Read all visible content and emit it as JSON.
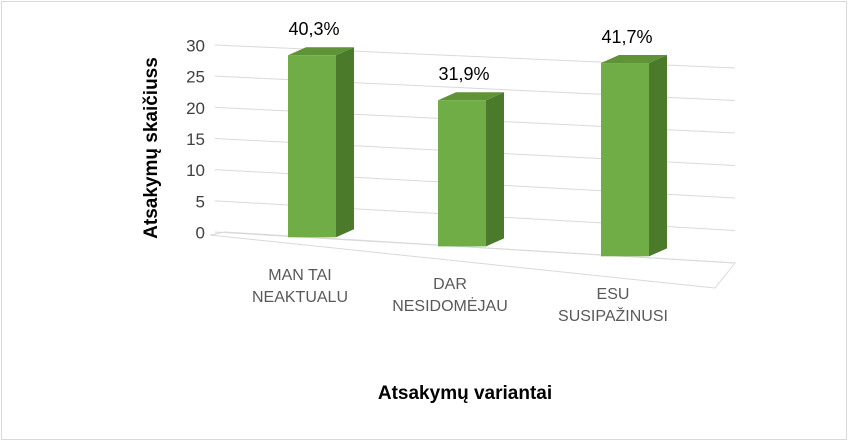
{
  "chart_data": {
    "type": "bar3d",
    "y_label": "Atsakymų skaičiuss",
    "x_label": "Atsakymų variantai",
    "categories": [
      "MAN TAI\nNEAKTUALU",
      "DAR\nNESIDOMĖJAU",
      "ESU\nSUSIPAŽINUSI"
    ],
    "values": [
      29,
      23,
      30
    ],
    "annotations": [
      "40,3%",
      "31,9%",
      "41,7%"
    ],
    "color": "#70ad47",
    "ylim": [
      0,
      30
    ],
    "yticks": [
      0,
      5,
      10,
      15,
      20,
      25,
      30
    ],
    "grid": true
  }
}
